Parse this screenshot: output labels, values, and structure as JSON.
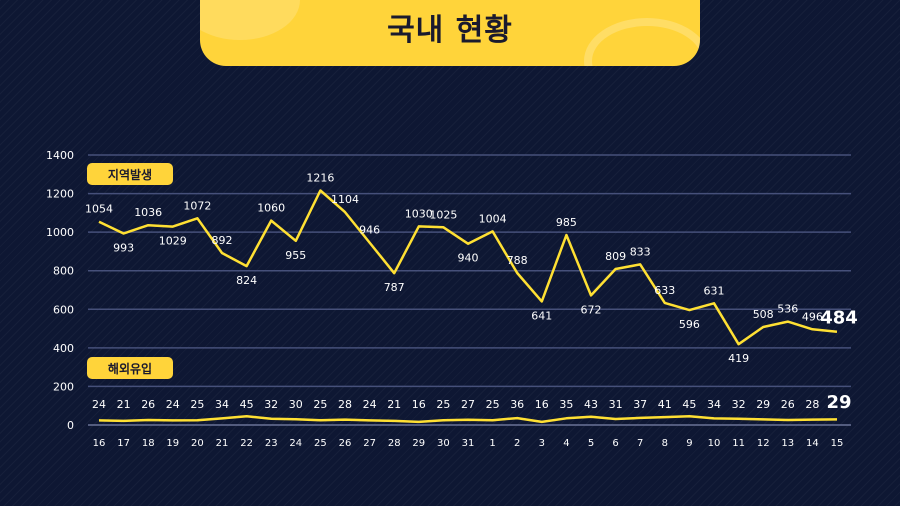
{
  "title": "국내 현황",
  "colors": {
    "line": "#ffe033",
    "label": "#ffffff",
    "grid": "#46507a",
    "badge": "#ffd43a",
    "badge_text": "#1a1a2e"
  },
  "chart_data": {
    "type": "line",
    "categories": [
      "16",
      "17",
      "18",
      "19",
      "20",
      "21",
      "22",
      "23",
      "24",
      "25",
      "26",
      "27",
      "28",
      "29",
      "30",
      "31",
      "1",
      "2",
      "3",
      "4",
      "5",
      "6",
      "7",
      "8",
      "9",
      "10",
      "11",
      "12",
      "13",
      "14",
      "15"
    ],
    "ylim": [
      0,
      1400
    ],
    "yticks": [
      "0",
      "200",
      "400",
      "600",
      "800",
      "1000",
      "1200",
      "1400"
    ],
    "grid": true,
    "series": [
      {
        "name": "지역발생",
        "values": [
          1054,
          993,
          1036,
          1029,
          1072,
          892,
          824,
          1060,
          955,
          1216,
          1104,
          946,
          787,
          1030,
          1025,
          940,
          1004,
          788,
          641,
          985,
          672,
          809,
          833,
          633,
          596,
          631,
          419,
          508,
          536,
          496,
          484
        ]
      },
      {
        "name": "해외유입",
        "values": [
          24,
          21,
          26,
          24,
          25,
          34,
          45,
          32,
          30,
          25,
          28,
          24,
          21,
          16,
          25,
          27,
          25,
          36,
          16,
          35,
          43,
          31,
          37,
          41,
          45,
          34,
          32,
          29,
          26,
          28,
          29
        ]
      }
    ]
  }
}
